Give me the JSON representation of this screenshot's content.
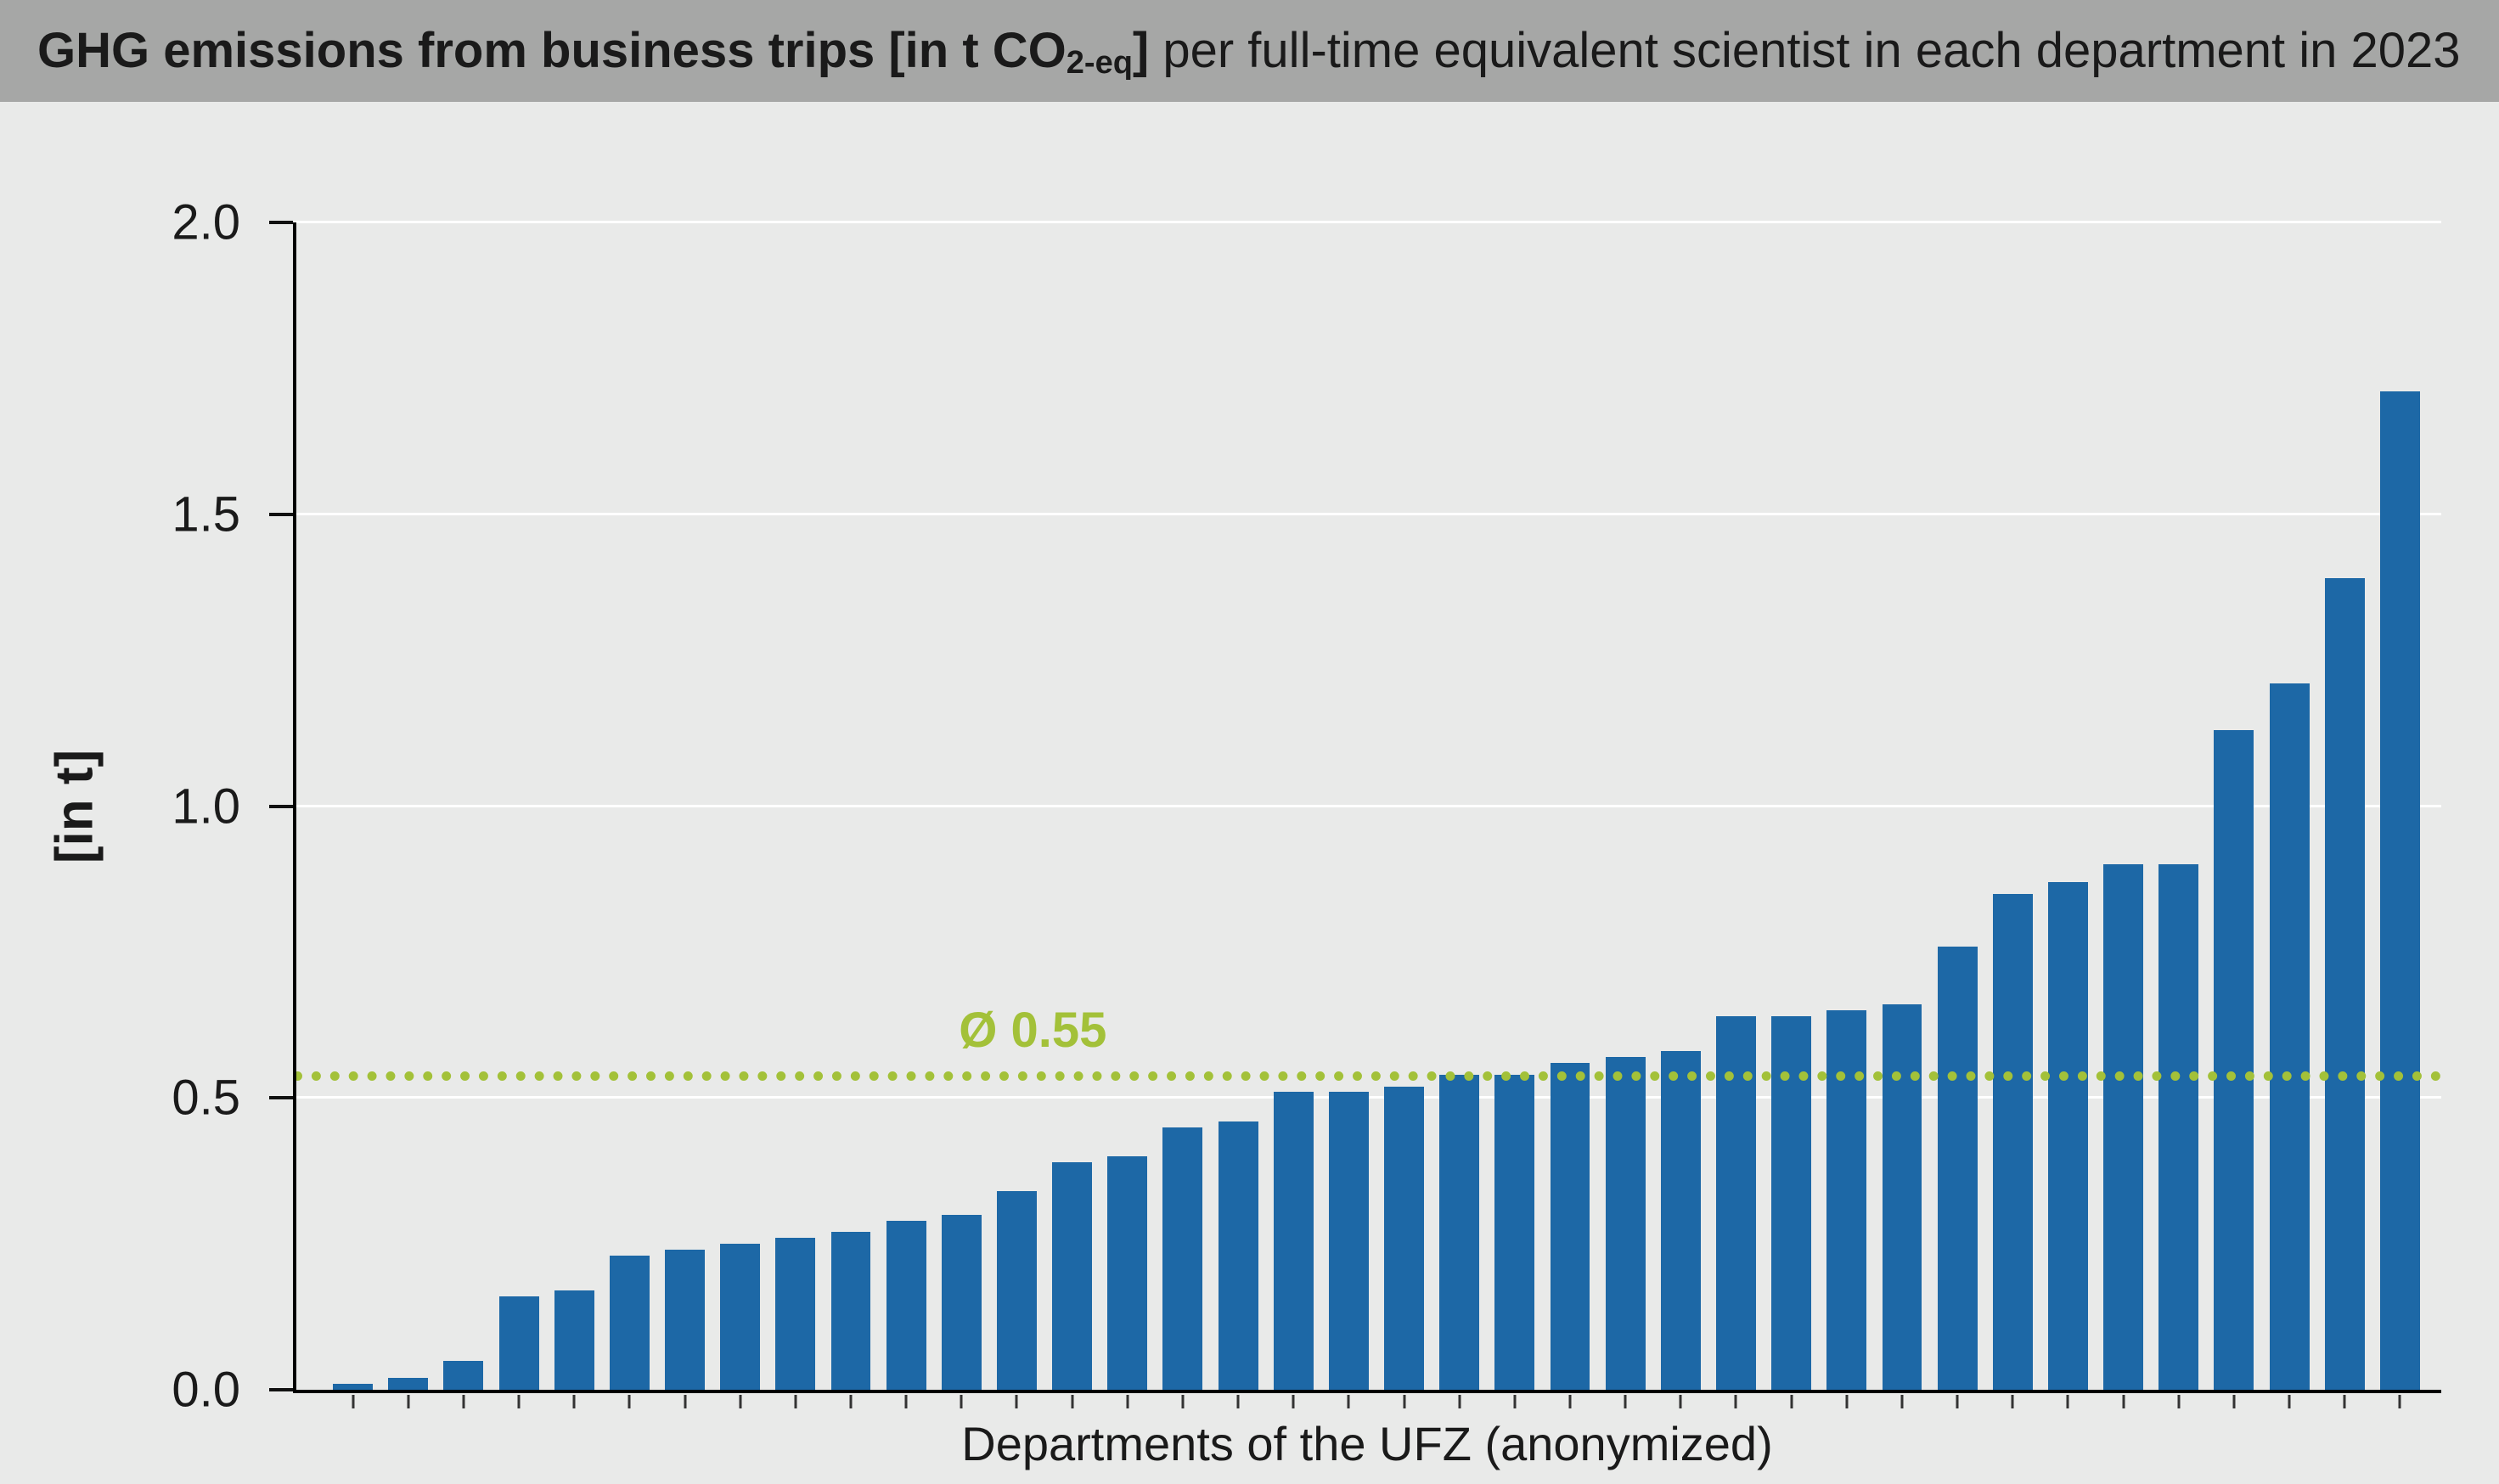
{
  "header": {
    "title_bold": "GHG emissions from business trips [in t CO",
    "title_sub": "2-eq",
    "title_bold_end": "]",
    "title_regular": " per full-time equivalent scientist in each department in 2023"
  },
  "chart_data": {
    "type": "bar",
    "title": "GHG emissions from business trips [in t CO2-eq] per full-time equivalent scientist in each department in 2023",
    "xlabel": "Departments of the UFZ (anonymized)",
    "ylabel": "[in t]",
    "ylim": [
      0,
      2.0
    ],
    "yticks": [
      "0.0",
      "0.5",
      "1.0",
      "1.5",
      "2.0"
    ],
    "grid": "horizontal white gridlines at each y tick",
    "legend": "none",
    "values": [
      0.01,
      0.02,
      0.05,
      0.16,
      0.17,
      0.23,
      0.24,
      0.25,
      0.26,
      0.27,
      0.29,
      0.3,
      0.34,
      0.39,
      0.4,
      0.45,
      0.46,
      0.51,
      0.51,
      0.52,
      0.54,
      0.54,
      0.56,
      0.57,
      0.58,
      0.64,
      0.64,
      0.65,
      0.66,
      0.76,
      0.85,
      0.87,
      0.9,
      0.9,
      1.13,
      1.21,
      1.39,
      1.71
    ],
    "average": {
      "label": "Ø 0.55",
      "value": 0.55,
      "line_position": 0.53
    }
  },
  "colors": {
    "bar": "#1d68a6",
    "average_line": "#a3c139",
    "title_bar_bg": "#a6a7a6",
    "background": "#e9eae9",
    "gridline": "#ffffff",
    "text": "#1a1a1a"
  }
}
